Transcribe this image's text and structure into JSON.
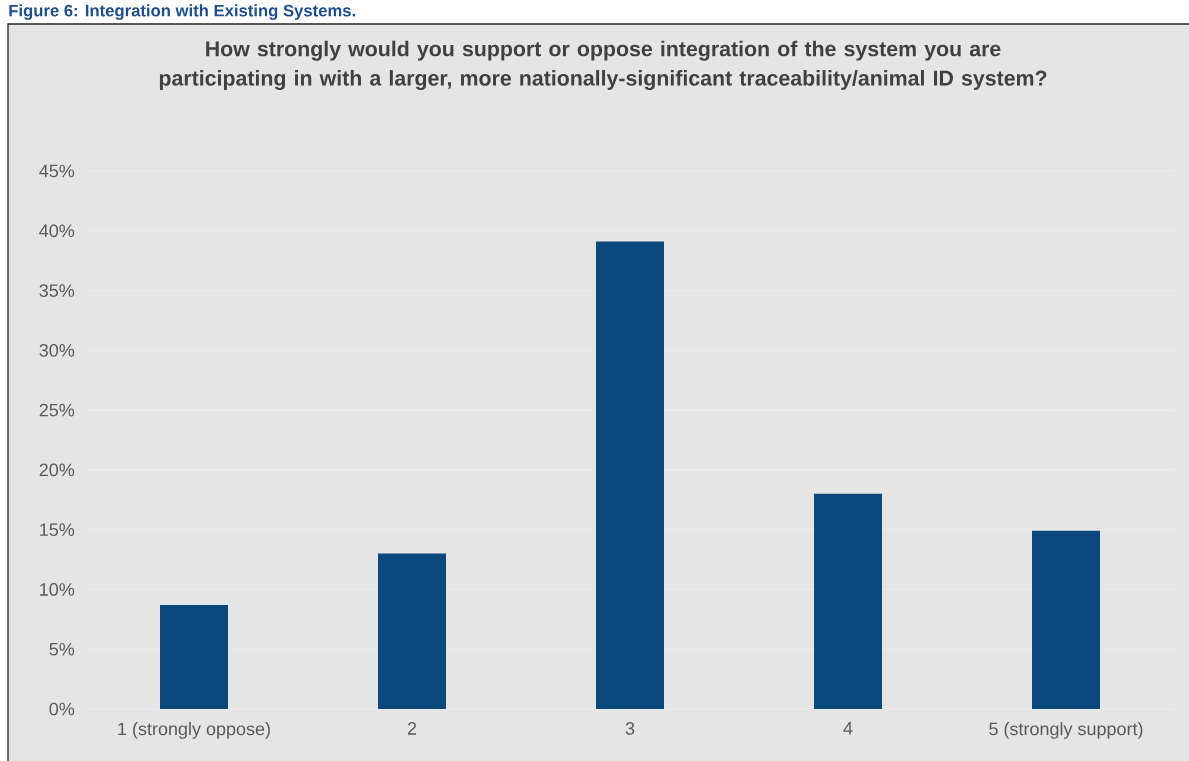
{
  "chart_data": {
    "type": "bar",
    "title": "How strongly would you support or oppose integration of the system you are participating in with a larger, more nationally-significant traceability/animal ID system?",
    "annotations": [
      "Figure 6: Integration with Existing Systems."
    ],
    "categories": [
      "1 (strongly oppose)",
      "2",
      "3",
      "4",
      "5 (strongly support)"
    ],
    "values": [
      8.7,
      13.0,
      39.1,
      18.0,
      14.9
    ],
    "color": "#0b497c",
    "ylim": [
      0,
      45
    ],
    "yticks": [
      {
        "value": 0,
        "label": "0%"
      },
      {
        "value": 5,
        "label": "5%"
      },
      {
        "value": 10,
        "label": "10%"
      },
      {
        "value": 15,
        "label": "15%"
      },
      {
        "value": 20,
        "label": "20%"
      },
      {
        "value": 25,
        "label": "25%"
      },
      {
        "value": 30,
        "label": "30%"
      },
      {
        "value": 35,
        "label": "35%"
      },
      {
        "value": 40,
        "label": "40%"
      },
      {
        "value": 45,
        "label": "45%"
      }
    ],
    "grid": "y"
  }
}
